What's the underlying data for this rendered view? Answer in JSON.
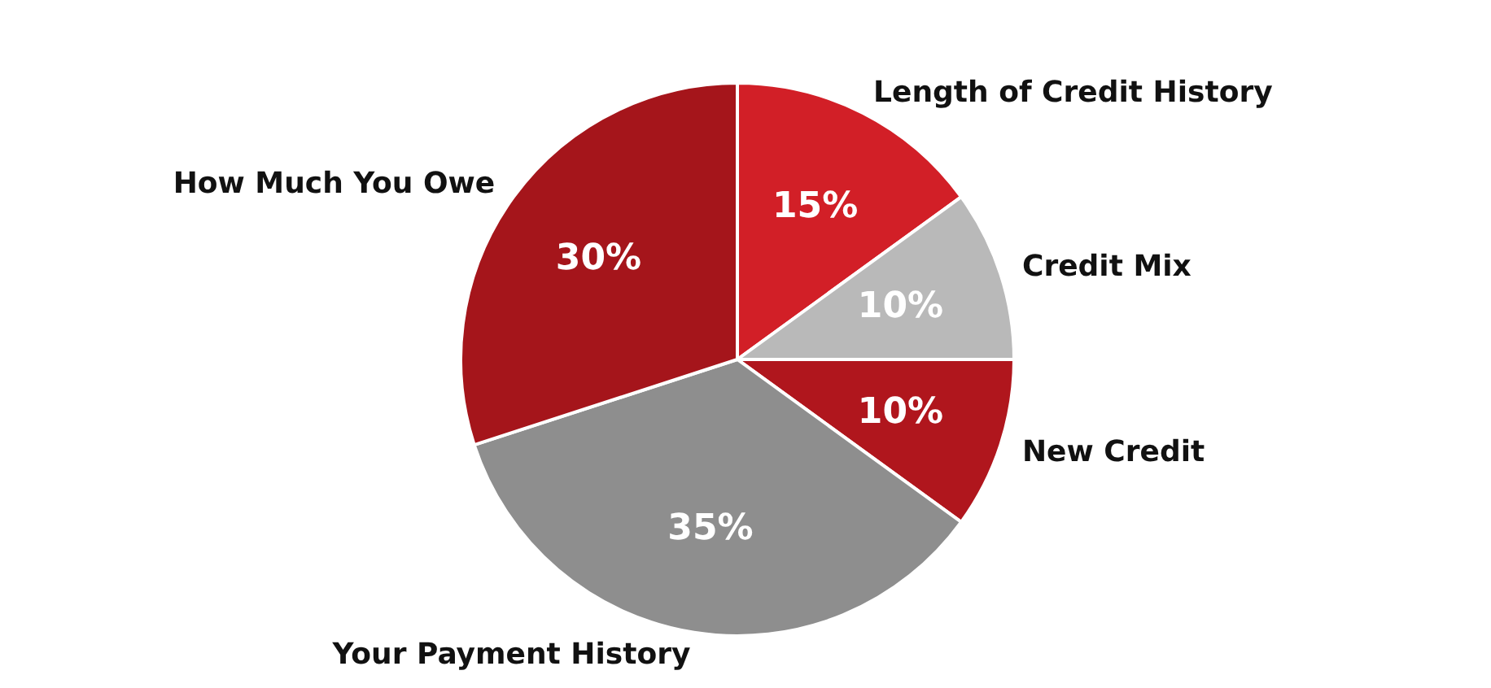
{
  "chart_data": {
    "type": "pie",
    "categories": [
      "Length of Credit History",
      "Credit Mix",
      "New Credit",
      "Your Payment History",
      "How Much You Owe"
    ],
    "values": [
      15,
      10,
      10,
      35,
      30
    ],
    "colors": [
      "#d21f27",
      "#b9b9b9",
      "#b0161d",
      "#8e8e8e",
      "#a5151b"
    ],
    "value_labels": [
      "15%",
      "10%",
      "10%",
      "35%",
      "30%"
    ]
  }
}
